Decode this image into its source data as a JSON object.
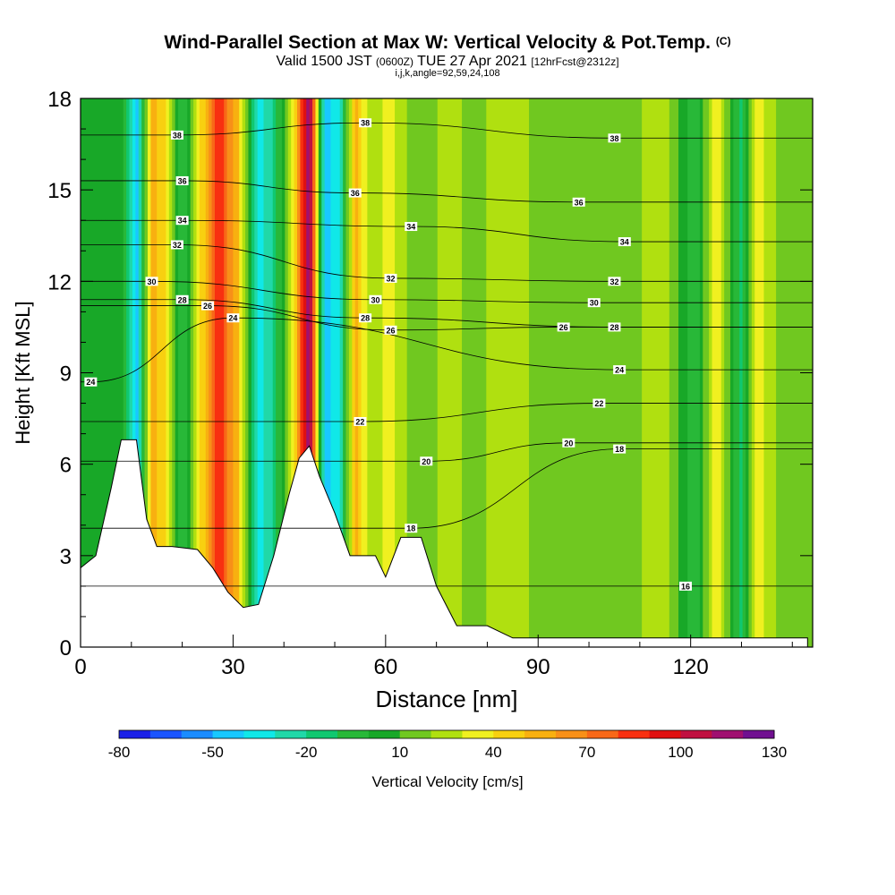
{
  "header": {
    "title": "Wind-Parallel Section at Max W: Vertical Velocity & Pot.Temp.",
    "copyright": "(C)",
    "valid_prefix": "Valid 1500 JST",
    "valid_utc": "(0600Z)",
    "valid_date": "TUE 27 Apr 2021",
    "forecast": "[12hrFcst@2312z]",
    "indices": "i,j,k,angle=92,59,24,108"
  },
  "chart_data": {
    "type": "heatmap",
    "xlabel": "Distance [nm]",
    "ylabel": "Height [Kft MSL]",
    "xlim": [
      0,
      144
    ],
    "ylim": [
      0,
      18
    ],
    "xticks": [
      "0",
      "30",
      "60",
      "90",
      "120"
    ],
    "xtick_values": [
      0,
      30,
      60,
      90,
      120
    ],
    "x_minor_tick_values": [
      10,
      20,
      40,
      50,
      70,
      80,
      100,
      110,
      130,
      140
    ],
    "yticks": [
      "0",
      "3",
      "6",
      "9",
      "12",
      "15",
      "18"
    ],
    "ytick_values": [
      0,
      3,
      6,
      9,
      12,
      15,
      18
    ],
    "grid": false,
    "fill_field": "Vertical Velocity",
    "contour_field": "Potential Temperature",
    "colorbar": {
      "title": "Vertical Velocity [cm/s]",
      "labels": [
        "-80",
        "-50",
        "-20",
        "10",
        "40",
        "70",
        "100",
        "130"
      ],
      "label_values": [
        -80,
        -50,
        -20,
        10,
        40,
        70,
        100,
        130
      ],
      "levels": [
        -80,
        -70,
        -60,
        -50,
        -40,
        -30,
        -20,
        -10,
        0,
        10,
        20,
        30,
        40,
        50,
        60,
        70,
        80,
        90,
        100,
        110,
        120,
        130
      ],
      "colors": [
        "#1a20e8",
        "#1a55ff",
        "#1a8cff",
        "#18c8ff",
        "#10e8e8",
        "#20d8a8",
        "#10c870",
        "#28b838",
        "#18a828",
        "#70c820",
        "#b0e010",
        "#f0f020",
        "#f8d010",
        "#f8b010",
        "#f89018",
        "#f86818",
        "#f83010",
        "#e01010",
        "#c01040",
        "#a01070",
        "#701090"
      ]
    },
    "velocity_columns": [
      {
        "x": 3,
        "w": 5
      },
      {
        "x": 8,
        "w": 3
      },
      {
        "x": 11,
        "w": -45
      },
      {
        "x": 14,
        "w": 55
      },
      {
        "x": 17,
        "w": 40
      },
      {
        "x": 20,
        "w": -10
      },
      {
        "x": 23,
        "w": 30
      },
      {
        "x": 27,
        "w": 90
      },
      {
        "x": 31,
        "w": 50
      },
      {
        "x": 35,
        "w": -35
      },
      {
        "x": 38,
        "w": -20
      },
      {
        "x": 42,
        "w": 40
      },
      {
        "x": 45,
        "w": 120
      },
      {
        "x": 48,
        "w": -45
      },
      {
        "x": 51,
        "w": -30
      },
      {
        "x": 54,
        "w": 55
      },
      {
        "x": 57,
        "w": 20
      },
      {
        "x": 61,
        "w": 35
      },
      {
        "x": 66,
        "w": 10
      },
      {
        "x": 72,
        "w": 25
      },
      {
        "x": 78,
        "w": 15
      },
      {
        "x": 84,
        "w": 30
      },
      {
        "x": 92,
        "w": 12
      },
      {
        "x": 100,
        "w": 20
      },
      {
        "x": 108,
        "w": 12
      },
      {
        "x": 114,
        "w": 30
      },
      {
        "x": 121,
        "w": -10
      },
      {
        "x": 125,
        "w": 40
      },
      {
        "x": 130,
        "w": -15
      },
      {
        "x": 133,
        "w": 35
      },
      {
        "x": 139,
        "w": 10
      }
    ],
    "terrain_kft": [
      [
        0,
        2.6
      ],
      [
        3,
        3.0
      ],
      [
        6,
        5.2
      ],
      [
        8,
        6.8
      ],
      [
        11,
        6.8
      ],
      [
        13,
        4.2
      ],
      [
        15,
        3.3
      ],
      [
        18,
        3.3
      ],
      [
        23,
        3.2
      ],
      [
        26,
        2.6
      ],
      [
        29,
        1.8
      ],
      [
        32,
        1.3
      ],
      [
        35,
        1.4
      ],
      [
        38,
        3.0
      ],
      [
        41,
        5.0
      ],
      [
        43,
        6.2
      ],
      [
        45,
        6.6
      ],
      [
        47,
        5.6
      ],
      [
        50,
        4.4
      ],
      [
        53,
        3.0
      ],
      [
        58,
        3.0
      ],
      [
        60,
        2.3
      ],
      [
        63,
        3.6
      ],
      [
        67,
        3.6
      ],
      [
        70,
        2.0
      ],
      [
        74,
        0.7
      ],
      [
        80,
        0.7
      ],
      [
        85,
        0.3
      ],
      [
        100,
        0.3
      ],
      [
        143,
        0.3
      ]
    ],
    "isentropes_kelvin_label": [
      {
        "label": "16",
        "x": 119,
        "y": 2.0
      },
      {
        "label": "18",
        "x": 65,
        "y": 3.9
      },
      {
        "label": "18",
        "x": 106,
        "y": 6.5
      },
      {
        "label": "20",
        "x": 68,
        "y": 6.1
      },
      {
        "label": "20",
        "x": 96,
        "y": 6.7
      },
      {
        "label": "22",
        "x": 55,
        "y": 7.4
      },
      {
        "label": "22",
        "x": 102,
        "y": 8.0
      },
      {
        "label": "24",
        "x": 2,
        "y": 8.7
      },
      {
        "label": "24",
        "x": 30,
        "y": 10.8
      },
      {
        "label": "24",
        "x": 106,
        "y": 9.1
      },
      {
        "label": "26",
        "x": 25,
        "y": 11.2
      },
      {
        "label": "26",
        "x": 61,
        "y": 10.4
      },
      {
        "label": "26",
        "x": 95,
        "y": 10.5
      },
      {
        "label": "28",
        "x": 20,
        "y": 11.4
      },
      {
        "label": "28",
        "x": 56,
        "y": 10.8
      },
      {
        "label": "28",
        "x": 105,
        "y": 10.5
      },
      {
        "label": "30",
        "x": 14,
        "y": 12.0
      },
      {
        "label": "30",
        "x": 58,
        "y": 11.4
      },
      {
        "label": "30",
        "x": 101,
        "y": 11.3
      },
      {
        "label": "32",
        "x": 19,
        "y": 13.2
      },
      {
        "label": "32",
        "x": 61,
        "y": 12.1
      },
      {
        "label": "32",
        "x": 105,
        "y": 12.0
      },
      {
        "label": "34",
        "x": 20,
        "y": 14.0
      },
      {
        "label": "34",
        "x": 65,
        "y": 13.8
      },
      {
        "label": "34",
        "x": 107,
        "y": 13.3
      },
      {
        "label": "36",
        "x": 20,
        "y": 15.3
      },
      {
        "label": "36",
        "x": 54,
        "y": 14.9
      },
      {
        "label": "36",
        "x": 98,
        "y": 14.6
      },
      {
        "label": "38",
        "x": 19,
        "y": 16.8
      },
      {
        "label": "38",
        "x": 56,
        "y": 17.2
      },
      {
        "label": "38",
        "x": 105,
        "y": 16.7
      }
    ]
  }
}
